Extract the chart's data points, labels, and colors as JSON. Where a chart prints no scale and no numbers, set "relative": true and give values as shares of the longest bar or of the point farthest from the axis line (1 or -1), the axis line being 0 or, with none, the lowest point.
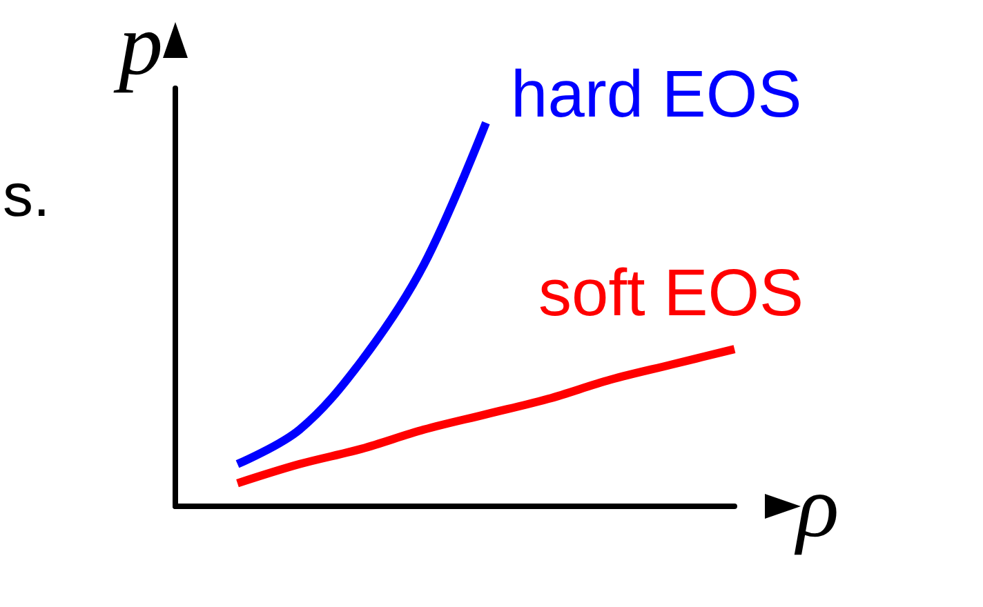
{
  "chart_data": {
    "type": "line",
    "relative": true,
    "xlabel": "ρ",
    "ylabel": "p",
    "annotations": [
      "s."
    ],
    "legend": false,
    "grid": false,
    "categories": [
      null,
      null,
      null,
      null,
      null,
      null,
      null,
      null,
      null,
      null
    ],
    "series": [
      {
        "name": "hard EOS",
        "color": "#0000ff",
        "values": [
          null,
          0.11,
          0.2,
          0.38,
          0.63,
          1.0,
          null,
          null,
          null,
          null
        ]
      },
      {
        "name": "soft EOS",
        "color": "#ff0000",
        "values": [
          null,
          0.06,
          0.11,
          0.15,
          0.2,
          0.24,
          0.28,
          0.33,
          0.37,
          0.41
        ]
      }
    ]
  }
}
